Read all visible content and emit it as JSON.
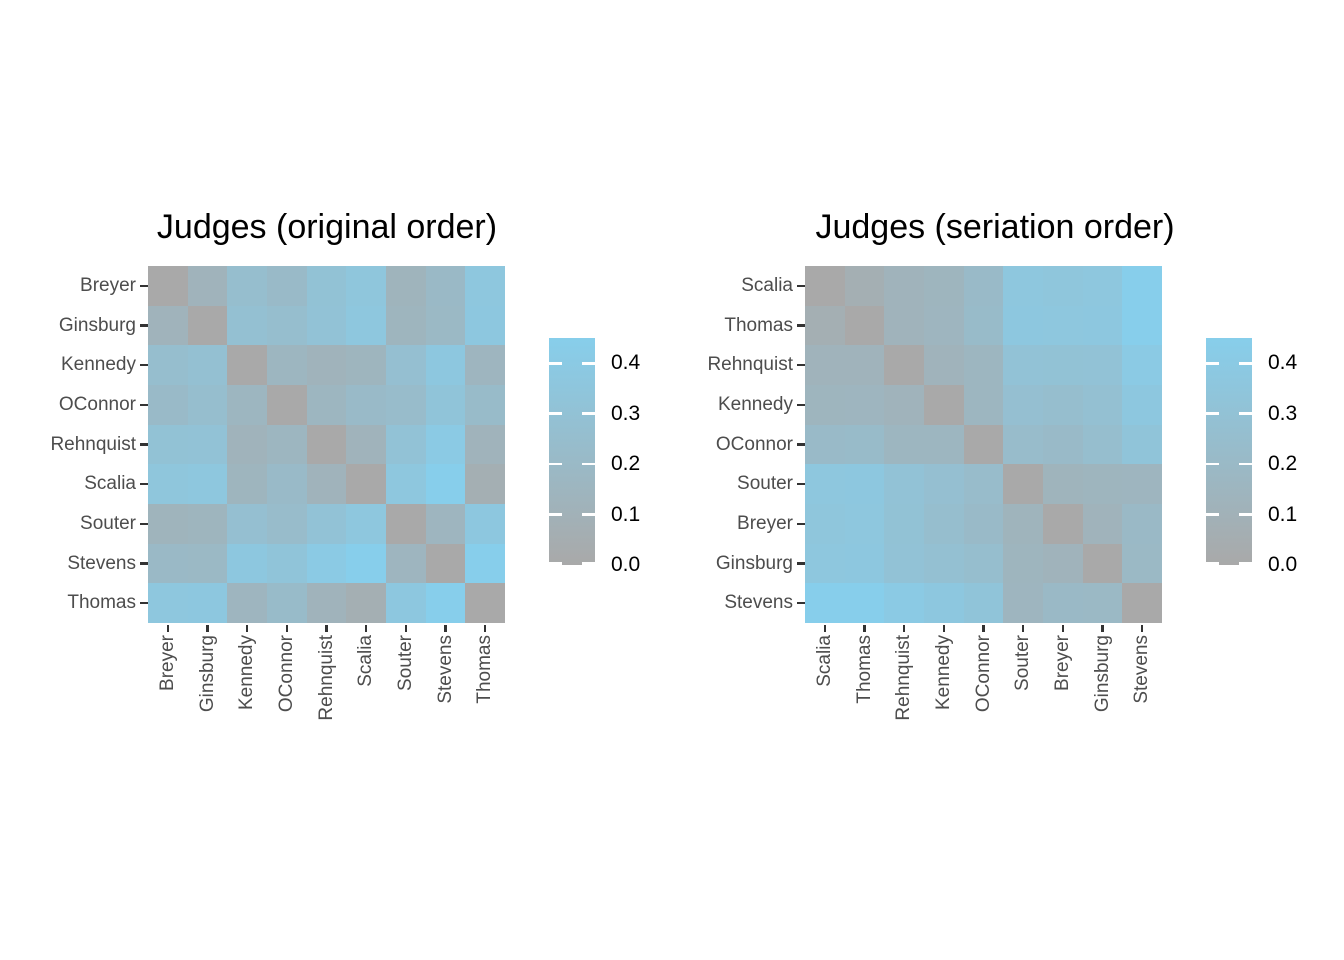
{
  "colors": {
    "background": "#ffffff",
    "title_text": "#000000",
    "axis_text": "#4d4d4d",
    "axis_tick": "#333333",
    "legend_tick_mark": "#ffffff",
    "gradient_low": "#a9a9a9",
    "gradient_high": "#87ceeb"
  },
  "chart_data": [
    {
      "type": "heatmap",
      "title": "Judges (original order)",
      "labels": [
        "Breyer",
        "Ginsburg",
        "Kennedy",
        "OConnor",
        "Rehnquist",
        "Scalia",
        "Souter",
        "Stevens",
        "Thomas"
      ],
      "matrix": [
        [
          0.0,
          0.12,
          0.25,
          0.21,
          0.3,
          0.35,
          0.13,
          0.2,
          0.36
        ],
        [
          0.12,
          0.0,
          0.28,
          0.25,
          0.31,
          0.36,
          0.14,
          0.19,
          0.37
        ],
        [
          0.25,
          0.28,
          0.0,
          0.16,
          0.12,
          0.14,
          0.27,
          0.37,
          0.15
        ],
        [
          0.21,
          0.25,
          0.16,
          0.0,
          0.16,
          0.21,
          0.23,
          0.33,
          0.22
        ],
        [
          0.3,
          0.31,
          0.12,
          0.16,
          0.0,
          0.12,
          0.31,
          0.4,
          0.12
        ],
        [
          0.35,
          0.36,
          0.14,
          0.21,
          0.12,
          0.0,
          0.36,
          0.45,
          0.07
        ],
        [
          0.13,
          0.14,
          0.27,
          0.23,
          0.31,
          0.36,
          0.0,
          0.15,
          0.37
        ],
        [
          0.2,
          0.19,
          0.37,
          0.33,
          0.4,
          0.45,
          0.15,
          0.0,
          0.45
        ],
        [
          0.36,
          0.37,
          0.15,
          0.22,
          0.12,
          0.07,
          0.37,
          0.45,
          0.0
        ]
      ],
      "legend": {
        "tick_labels": [
          "0.4",
          "0.3",
          "0.2",
          "0.1",
          "0.0"
        ],
        "tick_values": [
          0.4,
          0.3,
          0.2,
          0.1,
          0.0
        ],
        "min": 0.0,
        "max": 0.45,
        "low_color": "#a9a9a9",
        "high_color": "#87ceeb",
        "position": "right"
      }
    },
    {
      "type": "heatmap",
      "title": "Judges (seriation order)",
      "labels": [
        "Scalia",
        "Thomas",
        "Rehnquist",
        "Kennedy",
        "OConnor",
        "Souter",
        "Breyer",
        "Ginsburg",
        "Stevens"
      ],
      "matrix": [
        [
          0.0,
          0.07,
          0.12,
          0.14,
          0.21,
          0.36,
          0.35,
          0.36,
          0.45
        ],
        [
          0.07,
          0.0,
          0.12,
          0.15,
          0.22,
          0.37,
          0.36,
          0.37,
          0.45
        ],
        [
          0.12,
          0.12,
          0.0,
          0.12,
          0.16,
          0.31,
          0.3,
          0.31,
          0.4
        ],
        [
          0.14,
          0.15,
          0.12,
          0.0,
          0.16,
          0.27,
          0.25,
          0.28,
          0.37
        ],
        [
          0.21,
          0.22,
          0.16,
          0.16,
          0.0,
          0.23,
          0.21,
          0.25,
          0.33
        ],
        [
          0.36,
          0.37,
          0.31,
          0.27,
          0.23,
          0.0,
          0.13,
          0.14,
          0.15
        ],
        [
          0.35,
          0.36,
          0.3,
          0.25,
          0.21,
          0.13,
          0.0,
          0.12,
          0.2
        ],
        [
          0.36,
          0.37,
          0.31,
          0.28,
          0.25,
          0.14,
          0.12,
          0.0,
          0.19
        ],
        [
          0.45,
          0.45,
          0.4,
          0.37,
          0.33,
          0.15,
          0.2,
          0.19,
          0.0
        ]
      ],
      "legend": {
        "tick_labels": [
          "0.4",
          "0.3",
          "0.2",
          "0.1",
          "0.0"
        ],
        "tick_values": [
          0.4,
          0.3,
          0.2,
          0.1,
          0.0
        ],
        "min": 0.0,
        "max": 0.45,
        "low_color": "#a9a9a9",
        "high_color": "#87ceeb",
        "position": "right"
      }
    }
  ]
}
